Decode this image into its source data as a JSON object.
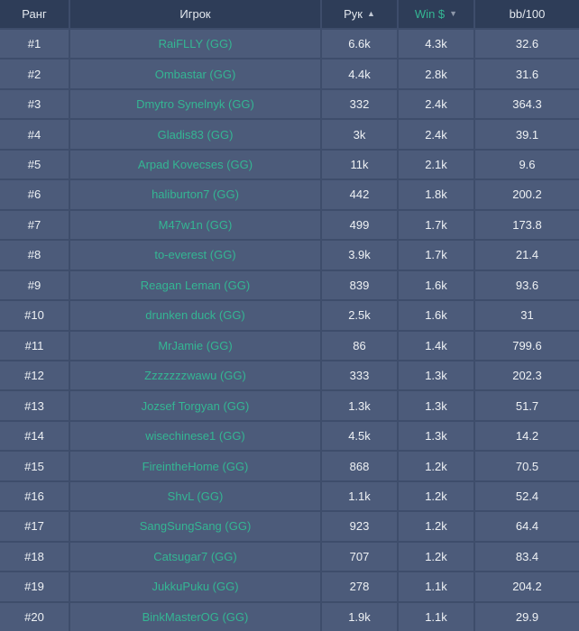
{
  "table": {
    "header": {
      "rank": "Ранг",
      "player": "Игрок",
      "hands": "Рук",
      "win": "Win $",
      "bb100": "bb/100",
      "hands_sort_arrow": "▲",
      "win_sort_arrow": "▼"
    },
    "rows": [
      {
        "rank": "#1",
        "player": "RaiFLLY (GG)",
        "hands": "6.6k",
        "win": "4.3k",
        "bb100": "32.6"
      },
      {
        "rank": "#2",
        "player": "Ombastar (GG)",
        "hands": "4.4k",
        "win": "2.8k",
        "bb100": "31.6"
      },
      {
        "rank": "#3",
        "player": "Dmytro Synelnyk (GG)",
        "hands": "332",
        "win": "2.4k",
        "bb100": "364.3"
      },
      {
        "rank": "#4",
        "player": "Gladis83 (GG)",
        "hands": "3k",
        "win": "2.4k",
        "bb100": "39.1"
      },
      {
        "rank": "#5",
        "player": "Arpad Kovecses (GG)",
        "hands": "11k",
        "win": "2.1k",
        "bb100": "9.6"
      },
      {
        "rank": "#6",
        "player": "haliburton7 (GG)",
        "hands": "442",
        "win": "1.8k",
        "bb100": "200.2"
      },
      {
        "rank": "#7",
        "player": "M47w1n (GG)",
        "hands": "499",
        "win": "1.7k",
        "bb100": "173.8"
      },
      {
        "rank": "#8",
        "player": "to-everest (GG)",
        "hands": "3.9k",
        "win": "1.7k",
        "bb100": "21.4"
      },
      {
        "rank": "#9",
        "player": "Reagan Leman (GG)",
        "hands": "839",
        "win": "1.6k",
        "bb100": "93.6"
      },
      {
        "rank": "#10",
        "player": "drunken duck (GG)",
        "hands": "2.5k",
        "win": "1.6k",
        "bb100": "31"
      },
      {
        "rank": "#11",
        "player": "MrJamie (GG)",
        "hands": "86",
        "win": "1.4k",
        "bb100": "799.6"
      },
      {
        "rank": "#12",
        "player": "Zzzzzzzwawu (GG)",
        "hands": "333",
        "win": "1.3k",
        "bb100": "202.3"
      },
      {
        "rank": "#13",
        "player": "Jozsef Torgyan (GG)",
        "hands": "1.3k",
        "win": "1.3k",
        "bb100": "51.7"
      },
      {
        "rank": "#14",
        "player": "wisechinese1 (GG)",
        "hands": "4.5k",
        "win": "1.3k",
        "bb100": "14.2"
      },
      {
        "rank": "#15",
        "player": "FireintheHome (GG)",
        "hands": "868",
        "win": "1.2k",
        "bb100": "70.5"
      },
      {
        "rank": "#16",
        "player": "ShvL (GG)",
        "hands": "1.1k",
        "win": "1.2k",
        "bb100": "52.4"
      },
      {
        "rank": "#17",
        "player": "SangSungSang (GG)",
        "hands": "923",
        "win": "1.2k",
        "bb100": "64.4"
      },
      {
        "rank": "#18",
        "player": "Catsugar7 (GG)",
        "hands": "707",
        "win": "1.2k",
        "bb100": "83.4"
      },
      {
        "rank": "#19",
        "player": "JukkuPuku (GG)",
        "hands": "278",
        "win": "1.1k",
        "bb100": "204.2"
      },
      {
        "rank": "#20",
        "player": "BinkMasterOG (GG)",
        "hands": "1.9k",
        "win": "1.1k",
        "bb100": "29.9"
      }
    ]
  },
  "colors": {
    "header_bg": "#2e3d58",
    "row_bg": "#4c5b7a",
    "border": "#3e4d6b",
    "accent_green": "#34b693",
    "text": "#eef1f4"
  }
}
